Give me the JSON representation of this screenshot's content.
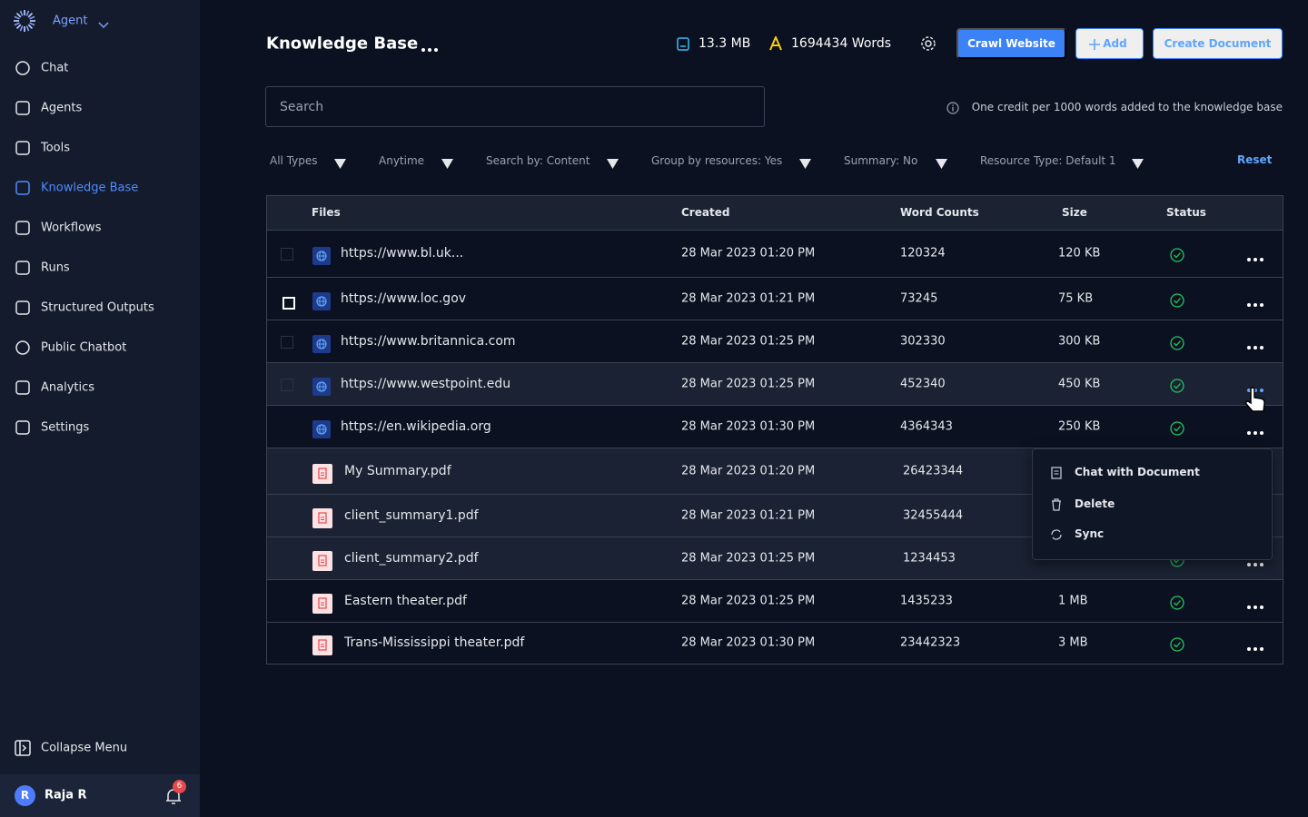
{
  "sidebar": {
    "workspace": "Agent",
    "nav": [
      "Chat",
      "Agents",
      "Tools",
      "Knowledge Base",
      "Workflows",
      "Runs",
      "Structured Outputs",
      "Public Chatbot",
      "Analytics",
      "Settings"
    ],
    "collapse": "Collapse Menu",
    "user": {
      "initial": "R",
      "name": "Raja R",
      "notifications": 6
    }
  },
  "header": {
    "title": "Knowledge Base",
    "storage": "13.3 MB",
    "words": "1694434 Words",
    "buttons": [
      "Crawl Website",
      "Add",
      "Create Document"
    ]
  },
  "search": {
    "placeholder": "Search",
    "info": "One credit per 1000 words added to the knowledge base"
  },
  "filters": [
    "All Types",
    "Anytime",
    "Search by: Content",
    "Group by resources: Yes",
    "Summary: No",
    "Resource Type: Default 1"
  ],
  "reset": "Reset",
  "table": {
    "columns": [
      "Files",
      "Created",
      "Word Counts",
      "Size",
      "Status"
    ],
    "rows": [
      {
        "file": "https://www.bl.uk...",
        "created": "28 Mar 2023 01:20 PM",
        "words": 120324,
        "size": "120 KB"
      },
      {
        "file": "https://www.loc.gov",
        "created": "28 Mar 2023 01:21 PM",
        "words": 73245,
        "size": "75 KB"
      },
      {
        "file": "https://www.britannica.com",
        "created": "28 Mar 2023 01:25 PM",
        "words": 302330,
        "size": "300 KB"
      },
      {
        "file": "https://www.westpoint.edu",
        "created": "28 Mar 2023 01:25 PM",
        "words": 452340,
        "size": "450 KB"
      },
      {
        "file": "https://en.wikipedia.org",
        "created": "28 Mar 2023 01:30 PM",
        "words": 4364343,
        "size": "250 KB"
      },
      {
        "file": "My Summary.pdf",
        "created": "28 Mar 2023 01:20 PM",
        "words": 26423344
      },
      {
        "file": "client_summary1.pdf",
        "created": "28 Mar 2023 01:21 PM",
        "words": 32455444
      },
      {
        "file": "client_summary2.pdf",
        "created": "28 Mar 2023 01:25 PM",
        "words": 1234453
      },
      {
        "file": "Eastern theater.pdf",
        "created": "28 Mar 2023 01:25 PM",
        "words": 1435233,
        "size": "1 MB"
      },
      {
        "file": "Trans-Mississippi theater.pdf",
        "created": "28 Mar 2023 01:30 PM",
        "words": 23442323,
        "size": "3 MB"
      }
    ]
  },
  "menu": [
    "Chat with Document",
    "Delete",
    "Sync"
  ]
}
